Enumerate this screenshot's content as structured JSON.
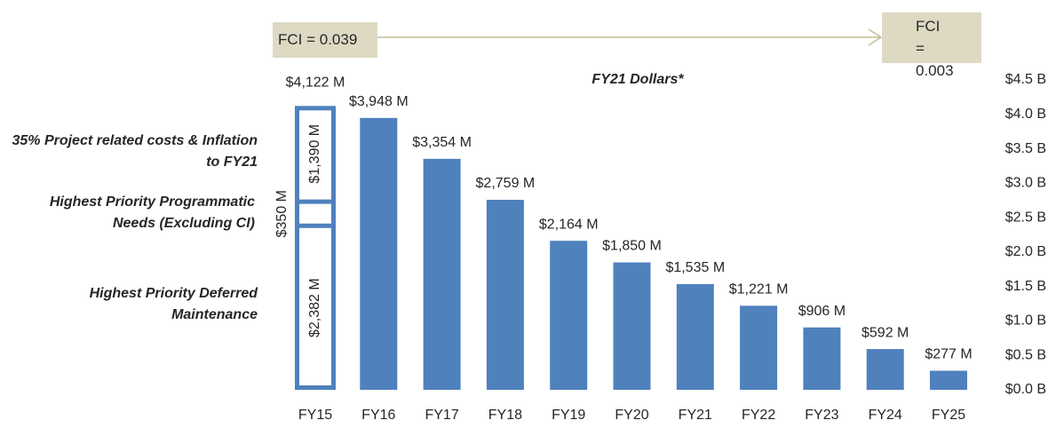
{
  "chart_data": {
    "type": "bar",
    "subtitle": "FY21 Dollars*",
    "categories": [
      "FY15",
      "FY16",
      "FY17",
      "FY18",
      "FY19",
      "FY20",
      "FY21",
      "FY22",
      "FY23",
      "FY24",
      "FY25"
    ],
    "values": [
      4.122,
      3.948,
      3.354,
      2.759,
      2.164,
      1.85,
      1.535,
      1.221,
      0.906,
      0.592,
      0.277
    ],
    "value_labels": [
      "$4,122 M",
      "$3,948 M",
      "$3,354 M",
      "$2,759 M",
      "$2,164 M",
      "$1,850 M",
      "$1,535 M",
      "$1,221 M",
      "$906 M",
      "$592 M",
      "$277 M"
    ],
    "color": "#4f81bd",
    "breakdown": [
      {
        "name": "Highest Priority Deferred Maintenance",
        "value": 2.382,
        "value_label": "$2,382 M"
      },
      {
        "name": "Highest Priority Programmatic Needs (Excluding CI)",
        "value": 0.35,
        "value_label": "$350 M"
      },
      {
        "name": "35% Project related costs & Inflation to FY21",
        "value": 1.39,
        "value_label": "$1,390 M"
      }
    ],
    "annotations": [
      {
        "text": "FCI = 0.039"
      },
      {
        "text": "FCI = 0.003"
      }
    ],
    "ylim": [
      0,
      4.5
    ],
    "yticks": [
      {
        "value": 0,
        "label": "$0.0 B"
      },
      {
        "value": 0.5,
        "label": "$0.5 B"
      },
      {
        "value": 1,
        "label": "$1.0 B"
      },
      {
        "value": 1.5,
        "label": "$1.5 B"
      },
      {
        "value": 2,
        "label": "$2.0 B"
      },
      {
        "value": 2.5,
        "label": "$2.5 B"
      },
      {
        "value": 3,
        "label": "$3.0 B"
      },
      {
        "value": 3.5,
        "label": "$3.5 B"
      },
      {
        "value": 4,
        "label": "$4.0 B"
      },
      {
        "value": 4.5,
        "label": "$4.5 B"
      }
    ],
    "grid": false
  }
}
